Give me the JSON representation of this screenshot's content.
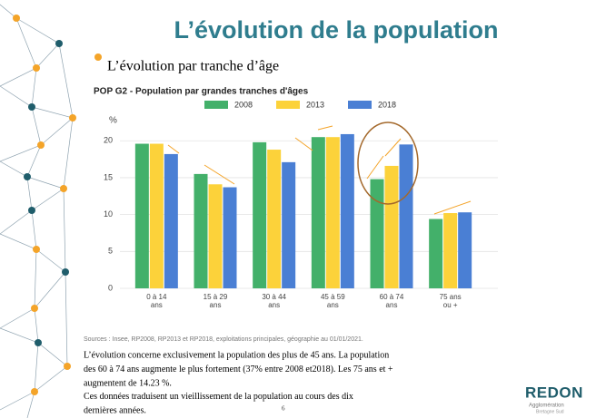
{
  "slide": {
    "title": "L’évolution de la population",
    "bullet": "L’évolution par tranche d’âge",
    "page_number": "6",
    "logo": {
      "name": "REDON",
      "line1": "Agglomération",
      "line2": "Bretagne Sud"
    }
  },
  "chart_data": {
    "type": "bar",
    "title": "POP G2 - Population par grandes tranches d'âges",
    "y_label": "%",
    "categories": [
      [
        "0 à 14",
        "ans"
      ],
      [
        "15 à 29",
        "ans"
      ],
      [
        "30 à 44",
        "ans"
      ],
      [
        "45 à 59",
        "ans"
      ],
      [
        "60 à 74",
        "ans"
      ],
      [
        "75 ans",
        "ou +"
      ]
    ],
    "series": [
      {
        "name": "2008",
        "color": "#43b06a",
        "values": [
          19.6,
          15.5,
          19.8,
          20.5,
          14.8,
          9.4
        ]
      },
      {
        "name": "2013",
        "color": "#fcd23a",
        "values": [
          19.6,
          14.1,
          18.8,
          20.5,
          16.6,
          10.2
        ]
      },
      {
        "name": "2018",
        "color": "#4a7fd4",
        "values": [
          18.2,
          13.7,
          17.1,
          20.9,
          19.5,
          10.3
        ]
      }
    ],
    "ylim": [
      0,
      22
    ],
    "yticks": [
      0,
      5,
      10,
      15,
      20
    ],
    "grid": true,
    "legend": "top",
    "source": "Sources : Insee, RP2008, RP2013 et RP2018, exploitations principales, géographie au 01/01/2021."
  },
  "text": {
    "lines": [
      "L’évolution concerne exclusivement la population des plus de 45 ans. La population",
      "des 60 à 74 ans augmente le plus fortement (37% entre 2008 et2018). Les 75 ans et +",
      "augmentent de 14.23 %.",
      "Ces données traduisent un vieillissement de la population au cours des dix",
      "dernières années."
    ]
  }
}
